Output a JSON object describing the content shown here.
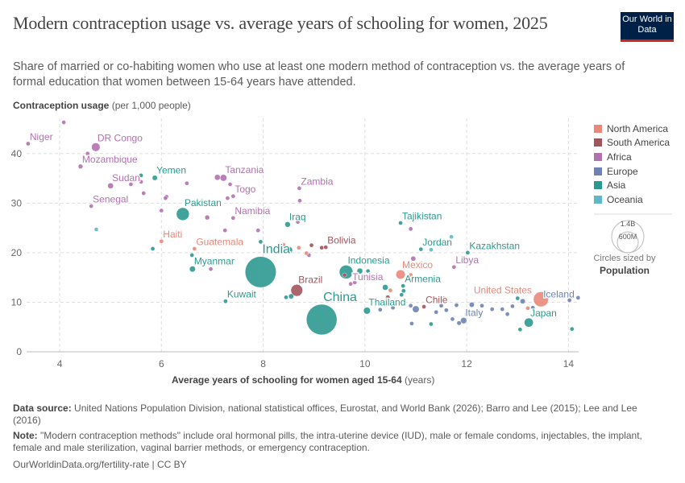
{
  "header": {
    "title": "Modern contraception usage vs. average years of schooling for women, 2025",
    "subtitle": "Share of married or co-habiting women who use at least one modern method of contraception vs. the average years of formal education that women between 15-64 years have attended.",
    "logo": "Our World in Data"
  },
  "chart_data": {
    "type": "scatter",
    "title": "Modern contraception usage vs. average years of schooling for women, 2025",
    "ylabel_bold": "Contraception usage",
    "ylabel_unit": "(per 1,000 people)",
    "xlabel_bold": "Average years of schooling for women aged 15-64",
    "xlabel_unit": "(years)",
    "xlim": [
      3.35,
      14.2
    ],
    "ylim": [
      0,
      46.3
    ],
    "xticks": [
      4,
      6,
      8,
      10,
      12,
      14
    ],
    "yticks": [
      0,
      10,
      20,
      30,
      40
    ],
    "grid": true,
    "legend_position": "right",
    "regions": [
      {
        "name": "North America",
        "color": "#E9887A"
      },
      {
        "name": "South America",
        "color": "#A2545C"
      },
      {
        "name": "Africa",
        "color": "#B072AE"
      },
      {
        "name": "Europe",
        "color": "#6D83B4"
      },
      {
        "name": "Asia",
        "color": "#2C9990"
      },
      {
        "name": "Oceania",
        "color": "#5FB8C8"
      }
    ],
    "size_legend": {
      "large": "1.4B",
      "small": "600M",
      "caption": "Circles sized by",
      "variable": "Population"
    },
    "points": [
      {
        "label": "Niger",
        "region": "Africa",
        "x": 3.38,
        "y": 42.0,
        "pop": 27
      },
      {
        "label": "DR Congo",
        "region": "Africa",
        "x": 4.71,
        "y": 41.3,
        "pop": 110
      },
      {
        "label": "Mozambique",
        "region": "Africa",
        "x": 4.41,
        "y": 37.4,
        "pop": 34
      },
      {
        "label": "Sudan",
        "region": "Africa",
        "x": 5.0,
        "y": 33.5,
        "pop": 50
      },
      {
        "label": "Senegal",
        "region": "Africa",
        "x": 4.62,
        "y": 29.4,
        "pop": 18
      },
      {
        "label": "Yemen",
        "region": "Asia",
        "x": 5.87,
        "y": 35.1,
        "pop": 40
      },
      {
        "label": "Tanzania",
        "region": "Africa",
        "x": 7.22,
        "y": 35.1,
        "pop": 68
      },
      {
        "label": "Togo",
        "region": "Africa",
        "x": 7.41,
        "y": 31.4,
        "pop": 9
      },
      {
        "label": "Zambia",
        "region": "Africa",
        "x": 8.71,
        "y": 33.0,
        "pop": 21
      },
      {
        "label": "Pakistan",
        "region": "Asia",
        "x": 6.42,
        "y": 27.8,
        "pop": 250
      },
      {
        "label": "Namibia",
        "region": "Africa",
        "x": 7.41,
        "y": 27.0,
        "pop": 3
      },
      {
        "label": "Iraq",
        "region": "Asia",
        "x": 8.48,
        "y": 25.7,
        "pop": 46
      },
      {
        "label": "Haiti",
        "region": "North America",
        "x": 6.0,
        "y": 22.3,
        "pop": 12
      },
      {
        "label": "Guatemala",
        "region": "North America",
        "x": 6.65,
        "y": 20.8,
        "pop": 18
      },
      {
        "label": "Bolivia",
        "region": "South America",
        "x": 9.23,
        "y": 21.1,
        "pop": 12
      },
      {
        "label": "India",
        "region": "Asia",
        "x": 7.95,
        "y": 16.1,
        "pop": 1450
      },
      {
        "label": "Myanmar",
        "region": "Asia",
        "x": 6.61,
        "y": 16.7,
        "pop": 54
      },
      {
        "label": "Kuwait",
        "region": "Asia",
        "x": 7.26,
        "y": 10.2,
        "pop": 5
      },
      {
        "label": "Brazil",
        "region": "South America",
        "x": 8.66,
        "y": 12.4,
        "pop": 212
      },
      {
        "label": "China",
        "region": "Asia",
        "x": 9.15,
        "y": 6.5,
        "pop": 1410
      },
      {
        "label": "Indonesia",
        "region": "Asia",
        "x": 9.63,
        "y": 16.1,
        "pop": 280
      },
      {
        "label": "Tunisia",
        "region": "Africa",
        "x": 9.72,
        "y": 13.7,
        "pop": 12
      },
      {
        "label": "Thailand",
        "region": "Asia",
        "x": 10.04,
        "y": 8.3,
        "pop": 72
      },
      {
        "label": "Mexico",
        "region": "North America",
        "x": 10.7,
        "y": 15.6,
        "pop": 130
      },
      {
        "label": "Armenia",
        "region": "Asia",
        "x": 10.75,
        "y": 13.3,
        "pop": 3
      },
      {
        "label": "Chile",
        "region": "South America",
        "x": 11.16,
        "y": 9.1,
        "pop": 20
      },
      {
        "label": "Jordan",
        "region": "Asia",
        "x": 11.1,
        "y": 20.7,
        "pop": 11
      },
      {
        "label": "Tajikistan",
        "region": "Asia",
        "x": 10.7,
        "y": 26.0,
        "pop": 10
      },
      {
        "label": "Kazakhstan",
        "region": "Asia",
        "x": 12.02,
        "y": 20.0,
        "pop": 20
      },
      {
        "label": "Libya",
        "region": "Africa",
        "x": 11.75,
        "y": 17.1,
        "pop": 7
      },
      {
        "label": "United States",
        "region": "North America",
        "x": 13.46,
        "y": 10.6,
        "pop": 340
      },
      {
        "label": "Iceland",
        "region": "Europe",
        "x": 14.19,
        "y": 10.9,
        "pop": 0.4
      },
      {
        "label": "Italy",
        "region": "Europe",
        "x": 11.94,
        "y": 6.3,
        "pop": 59
      },
      {
        "label": "Japan",
        "region": "Asia",
        "x": 13.22,
        "y": 5.9,
        "pop": 124
      },
      {
        "region": "Africa",
        "x": 4.08,
        "y": 46.3,
        "pop": 5
      },
      {
        "region": "Africa",
        "x": 4.55,
        "y": 40,
        "pop": 10
      },
      {
        "region": "Africa",
        "x": 5.6,
        "y": 34.3,
        "pop": 6
      },
      {
        "region": "Africa",
        "x": 5.4,
        "y": 33.8,
        "pop": 6
      },
      {
        "region": "Africa",
        "x": 5.65,
        "y": 32,
        "pop": 20
      },
      {
        "region": "Africa",
        "x": 6.1,
        "y": 31.3,
        "pop": 6
      },
      {
        "region": "Africa",
        "x": 6.08,
        "y": 31,
        "pop": 5
      },
      {
        "region": "Africa",
        "x": 6.5,
        "y": 34,
        "pop": 6
      },
      {
        "region": "Africa",
        "x": 7.1,
        "y": 35.2,
        "pop": 50
      },
      {
        "region": "Africa",
        "x": 7.35,
        "y": 33.8,
        "pop": 8
      },
      {
        "region": "Africa",
        "x": 7.3,
        "y": 31,
        "pop": 6
      },
      {
        "region": "Africa",
        "x": 8.72,
        "y": 30.5,
        "pop": 5
      },
      {
        "region": "Africa",
        "x": 6.0,
        "y": 28.5,
        "pop": 5
      },
      {
        "region": "Africa",
        "x": 6.9,
        "y": 27.1,
        "pop": 35
      },
      {
        "region": "Africa",
        "x": 7.25,
        "y": 24.5,
        "pop": 5
      },
      {
        "region": "Africa",
        "x": 7.9,
        "y": 24.5,
        "pop": 5
      },
      {
        "region": "Africa",
        "x": 8.68,
        "y": 26.2,
        "pop": 6
      },
      {
        "region": "Africa",
        "x": 8.9,
        "y": 19.5,
        "pop": 20
      },
      {
        "region": "Africa",
        "x": 10.9,
        "y": 24.8,
        "pop": 5
      },
      {
        "region": "Africa",
        "x": 10.95,
        "y": 18.8,
        "pop": 38
      },
      {
        "region": "Africa",
        "x": 9.8,
        "y": 14,
        "pop": 6
      },
      {
        "region": "Africa",
        "x": 6.97,
        "y": 16.7,
        "pop": 20
      },
      {
        "region": "Africa",
        "x": 8.35,
        "y": 21.1,
        "pop": 5
      },
      {
        "region": "Oceania",
        "x": 4.72,
        "y": 24.7,
        "pop": 4
      },
      {
        "region": "Oceania",
        "x": 11.7,
        "y": 23.2,
        "pop": 4
      },
      {
        "region": "Oceania",
        "x": 11.3,
        "y": 20.6,
        "pop": 1
      },
      {
        "region": "Asia",
        "x": 5.6,
        "y": 35.6,
        "pop": 20
      },
      {
        "region": "Asia",
        "x": 5.83,
        "y": 20.8,
        "pop": 4
      },
      {
        "region": "Asia",
        "x": 6.6,
        "y": 19.5,
        "pop": 4
      },
      {
        "region": "Asia",
        "x": 7.95,
        "y": 22.2,
        "pop": 8
      },
      {
        "region": "Asia",
        "x": 8.5,
        "y": 20.5,
        "pop": 90
      },
      {
        "region": "Asia",
        "x": 8.55,
        "y": 11.2,
        "pop": 40
      },
      {
        "region": "Asia",
        "x": 8.45,
        "y": 11,
        "pop": 5
      },
      {
        "region": "Asia",
        "x": 9.9,
        "y": 16.3,
        "pop": 50
      },
      {
        "region": "Asia",
        "x": 10.06,
        "y": 16.3,
        "pop": 10
      },
      {
        "region": "Asia",
        "x": 10.4,
        "y": 13.0,
        "pop": 50
      },
      {
        "region": "Asia",
        "x": 11.3,
        "y": 5.6,
        "pop": 3
      },
      {
        "region": "Asia",
        "x": 13.05,
        "y": 4.5,
        "pop": 3
      },
      {
        "region": "Asia",
        "x": 14.07,
        "y": 4.6,
        "pop": 10
      },
      {
        "region": "Asia",
        "x": 10.72,
        "y": 11.5,
        "pop": 5
      },
      {
        "region": "Asia",
        "x": 10.76,
        "y": 12.3,
        "pop": 3
      },
      {
        "region": "Asia",
        "x": 13.0,
        "y": 10.8,
        "pop": 5
      },
      {
        "region": "Europe",
        "x": 10.9,
        "y": 9.3,
        "pop": 3
      },
      {
        "region": "Europe",
        "x": 11.4,
        "y": 8,
        "pop": 4
      },
      {
        "region": "Europe",
        "x": 11.6,
        "y": 8.4,
        "pop": 10
      },
      {
        "region": "Europe",
        "x": 11.0,
        "y": 8.6,
        "pop": 70
      },
      {
        "region": "Europe",
        "x": 12.1,
        "y": 9.5,
        "pop": 40
      },
      {
        "region": "Europe",
        "x": 12.3,
        "y": 9.3,
        "pop": 5
      },
      {
        "region": "Europe",
        "x": 12.5,
        "y": 8.6,
        "pop": 5
      },
      {
        "region": "Europe",
        "x": 12.7,
        "y": 8.6,
        "pop": 5
      },
      {
        "region": "Europe",
        "x": 12.9,
        "y": 9.2,
        "pop": 5
      },
      {
        "region": "Europe",
        "x": 13.1,
        "y": 10.2,
        "pop": 40
      },
      {
        "region": "Europe",
        "x": 13.3,
        "y": 8.9,
        "pop": 10
      },
      {
        "region": "Europe",
        "x": 14.02,
        "y": 10.4,
        "pop": 3
      },
      {
        "region": "Europe",
        "x": 11.72,
        "y": 6.6,
        "pop": 20
      },
      {
        "region": "Europe",
        "x": 11.85,
        "y": 5.8,
        "pop": 30
      },
      {
        "region": "Europe",
        "x": 10.3,
        "y": 8.5,
        "pop": 4
      },
      {
        "region": "Europe",
        "x": 10.55,
        "y": 8.9,
        "pop": 3
      },
      {
        "region": "Europe",
        "x": 11.5,
        "y": 9.3,
        "pop": 4
      },
      {
        "region": "Europe",
        "x": 11.8,
        "y": 9.4,
        "pop": 5
      },
      {
        "region": "Europe",
        "x": 10.92,
        "y": 5.7,
        "pop": 5
      },
      {
        "region": "Europe",
        "x": 12.0,
        "y": 7.5,
        "pop": 5
      },
      {
        "region": "Europe",
        "x": 12.8,
        "y": 7.6,
        "pop": 5
      },
      {
        "region": "North America",
        "x": 8.4,
        "y": 21.6,
        "pop": 5
      },
      {
        "region": "North America",
        "x": 8.7,
        "y": 21,
        "pop": 4
      },
      {
        "region": "North America",
        "x": 8.85,
        "y": 19.9,
        "pop": 4
      },
      {
        "region": "North America",
        "x": 10.9,
        "y": 15.5,
        "pop": 5
      },
      {
        "region": "North America",
        "x": 11.55,
        "y": 10.8,
        "pop": 3
      },
      {
        "region": "North America",
        "x": 10.5,
        "y": 12.4,
        "pop": 5
      },
      {
        "region": "North America",
        "x": 13.2,
        "y": 8.8,
        "pop": 4
      },
      {
        "region": "South America",
        "x": 8.95,
        "y": 21.5,
        "pop": 4
      },
      {
        "region": "South America",
        "x": 9.15,
        "y": 21,
        "pop": 4
      },
      {
        "region": "South America",
        "x": 10.45,
        "y": 11.0,
        "pop": 30
      },
      {
        "region": "South America",
        "x": 10.7,
        "y": 10,
        "pop": 4
      },
      {
        "region": "South America",
        "x": 9.6,
        "y": 15.5,
        "pop": 6
      }
    ]
  },
  "footer": {
    "source_label": "Data source:",
    "source": "United Nations Population Division, national statistical offices, Eurostat, and World Bank (2026); Barro and Lee (2015); Lee and Lee (2016)",
    "note_label": "Note:",
    "note": "\"Modern contraception methods\" include oral hormonal pills, the intra-uterine device (IUD), male or female condoms, injectables, the implant, female and male sterilization, vaginal barrier methods, or emergency contraception.",
    "url": "OurWorldinData.org/fertility-rate | CC BY"
  }
}
